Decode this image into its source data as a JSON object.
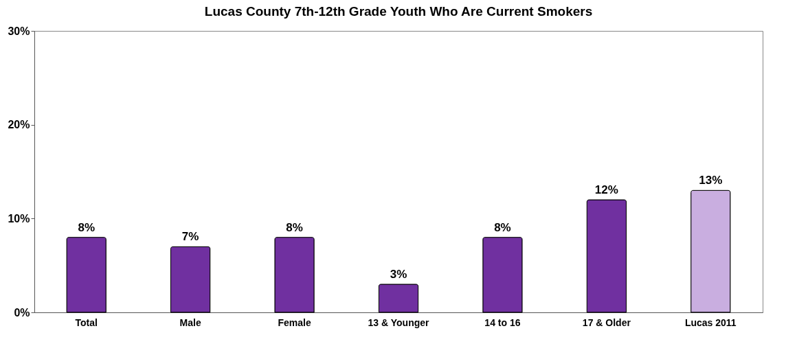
{
  "chart_data": {
    "type": "bar",
    "title": "Lucas County 7th-12th Grade Youth Who Are Current Smokers",
    "categories": [
      "Total",
      "Male",
      "Female",
      "13 & Younger",
      "14 to 16",
      "17 & Older",
      "Lucas 2011"
    ],
    "values": [
      8,
      7,
      8,
      3,
      8,
      12,
      13
    ],
    "colors": [
      "#7030a0",
      "#7030a0",
      "#7030a0",
      "#7030a0",
      "#7030a0",
      "#7030a0",
      "#c9aee0"
    ],
    "value_labels": [
      "8%",
      "7%",
      "8%",
      "3%",
      "8%",
      "12%",
      "13%"
    ],
    "ylim": [
      0,
      30
    ],
    "yticks": [
      {
        "value": 0,
        "label": "0%"
      },
      {
        "value": 10,
        "label": "10%"
      },
      {
        "value": 20,
        "label": "20%"
      },
      {
        "value": 30,
        "label": "30%"
      }
    ],
    "grid": false
  }
}
